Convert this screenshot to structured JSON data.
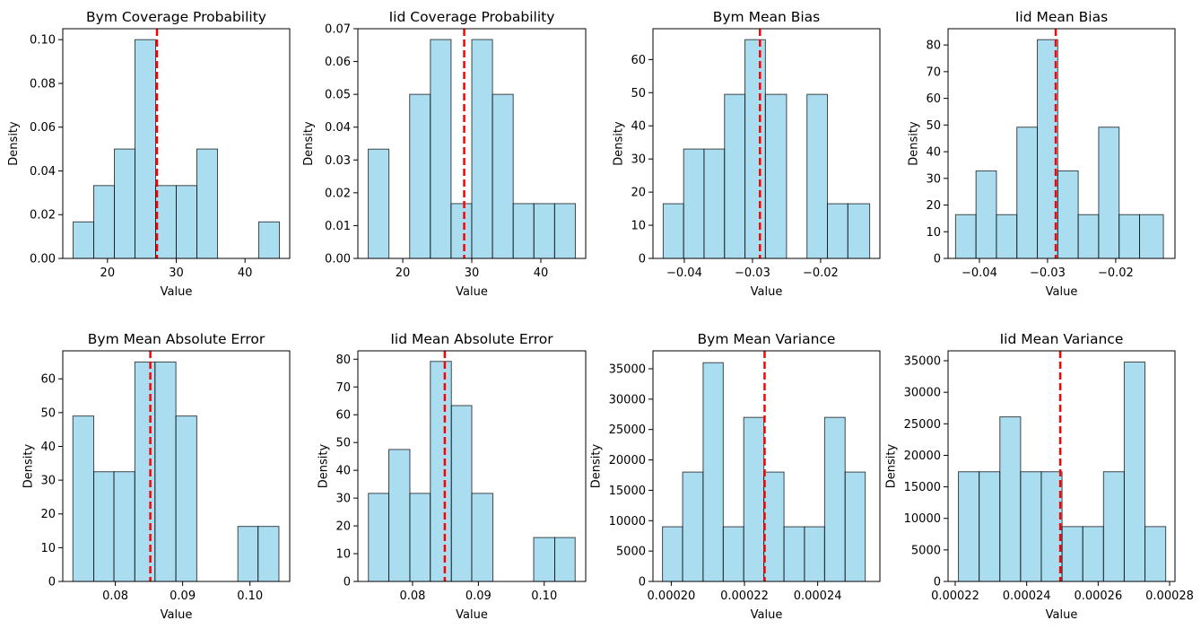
{
  "figure": {
    "colors": {
      "bar_fill": "#87ceeb",
      "bar_edge": "#000000",
      "mean_line": "#ff0000"
    }
  },
  "chart_data": [
    {
      "type": "bar",
      "title": "Bym Coverage Probability",
      "xlabel": "Value",
      "ylabel": "Density",
      "xlim": [
        13.5,
        46.5
      ],
      "ylim": [
        0,
        0.105
      ],
      "xticks": [
        20,
        30,
        40
      ],
      "xtick_labels": [
        "20",
        "30",
        "40"
      ],
      "yticks": [
        0,
        0.02,
        0.04,
        0.06,
        0.08,
        0.1
      ],
      "ytick_labels": [
        "0.00",
        "0.02",
        "0.04",
        "0.06",
        "0.08",
        "0.10"
      ],
      "bin_edges": [
        15,
        18,
        21,
        24,
        27,
        30,
        33,
        36,
        39,
        42,
        45
      ],
      "values": [
        0.0167,
        0.0333,
        0.05,
        0.1,
        0.0333,
        0.0333,
        0.05,
        0,
        0,
        0.0167
      ],
      "mean": 27.2
    },
    {
      "type": "bar",
      "title": "Iid Coverage Probability",
      "xlabel": "Value",
      "ylabel": "Density",
      "xlim": [
        13.5,
        46.5
      ],
      "ylim": [
        0,
        0.07
      ],
      "xticks": [
        20,
        30,
        40
      ],
      "xtick_labels": [
        "20",
        "30",
        "40"
      ],
      "yticks": [
        0,
        0.01,
        0.02,
        0.03,
        0.04,
        0.05,
        0.06,
        0.07
      ],
      "ytick_labels": [
        "0.00",
        "0.01",
        "0.02",
        "0.03",
        "0.04",
        "0.05",
        "0.06",
        "0.07"
      ],
      "bin_edges": [
        15,
        18,
        21,
        24,
        27,
        30,
        33,
        36,
        39,
        42,
        45
      ],
      "values": [
        0.0333,
        0,
        0.05,
        0.0667,
        0.0167,
        0.0667,
        0.05,
        0.0167,
        0.0167,
        0.0167
      ],
      "mean": 28.9
    },
    {
      "type": "bar",
      "title": "Bym Mean Bias",
      "xlabel": "Value",
      "ylabel": "Density",
      "xlim": [
        -0.0446,
        -0.0113
      ],
      "ylim": [
        0,
        69.3
      ],
      "xticks": [
        -0.04,
        -0.03,
        -0.02
      ],
      "xtick_labels": [
        "−0.04",
        "−0.03",
        "−0.02"
      ],
      "yticks": [
        0,
        10,
        20,
        30,
        40,
        50,
        60
      ],
      "ytick_labels": [
        "0",
        "10",
        "20",
        "30",
        "40",
        "50",
        "60"
      ],
      "bin_edges": [
        -0.0431,
        -0.0401,
        -0.0371,
        -0.0341,
        -0.0311,
        -0.0281,
        -0.025,
        -0.022,
        -0.019,
        -0.016,
        -0.0128
      ],
      "values": [
        16.5,
        33,
        33,
        49.5,
        66,
        49.5,
        0,
        49.5,
        16.5,
        16.5
      ],
      "mean": -0.0289
    },
    {
      "type": "bar",
      "title": "Iid Mean Bias",
      "xlabel": "Value",
      "ylabel": "Density",
      "xlim": [
        -0.0446,
        -0.0113
      ],
      "ylim": [
        0,
        86.1
      ],
      "xticks": [
        -0.04,
        -0.03,
        -0.02
      ],
      "xtick_labels": [
        "−0.04",
        "−0.03",
        "−0.02"
      ],
      "yticks": [
        0,
        10,
        20,
        30,
        40,
        50,
        60,
        70,
        80
      ],
      "ytick_labels": [
        "0",
        "10",
        "20",
        "30",
        "40",
        "50",
        "60",
        "70",
        "80"
      ],
      "bin_edges": [
        -0.0435,
        -0.0405,
        -0.0375,
        -0.0345,
        -0.0315,
        -0.0285,
        -0.0255,
        -0.0225,
        -0.0195,
        -0.0165,
        -0.013
      ],
      "values": [
        16.4,
        32.8,
        16.4,
        49.2,
        82,
        32.8,
        16.4,
        49.2,
        16.4,
        16.4
      ],
      "mean": -0.0288
    },
    {
      "type": "bar",
      "title": "Bym Mean Absolute Error",
      "xlabel": "Value",
      "ylabel": "Density",
      "xlim": [
        0.0722,
        0.1059
      ],
      "ylim": [
        0,
        68.3
      ],
      "xticks": [
        0.08,
        0.09,
        0.1
      ],
      "xtick_labels": [
        "0.08",
        "0.09",
        "0.10"
      ],
      "yticks": [
        0,
        10,
        20,
        30,
        40,
        50,
        60
      ],
      "ytick_labels": [
        "0",
        "10",
        "20",
        "30",
        "40",
        "50",
        "60"
      ],
      "bin_edges": [
        0.0737,
        0.0768,
        0.0798,
        0.0829,
        0.0859,
        0.089,
        0.0921,
        0.0951,
        0.0982,
        0.1012,
        0.1043
      ],
      "values": [
        49,
        32.5,
        32.5,
        65,
        65,
        49,
        0,
        0,
        16.3,
        16.3
      ],
      "mean": 0.0852
    },
    {
      "type": "bar",
      "title": "Iid Mean Absolute Error",
      "xlabel": "Value",
      "ylabel": "Density",
      "xlim": [
        0.0717,
        0.1063
      ],
      "ylim": [
        0,
        83
      ],
      "xticks": [
        0.08,
        0.09,
        0.1
      ],
      "xtick_labels": [
        "0.08",
        "0.09",
        "0.10"
      ],
      "yticks": [
        0,
        10,
        20,
        30,
        40,
        50,
        60,
        70,
        80
      ],
      "ytick_labels": [
        "0",
        "10",
        "20",
        "30",
        "40",
        "50",
        "60",
        "70",
        "80"
      ],
      "bin_edges": [
        0.0733,
        0.0764,
        0.0796,
        0.0827,
        0.0859,
        0.089,
        0.0922,
        0.0953,
        0.0984,
        0.1016,
        0.1047
      ],
      "values": [
        31.7,
        47.5,
        31.7,
        79.2,
        63.3,
        31.7,
        0,
        0,
        15.8,
        15.8
      ],
      "mean": 0.0849
    },
    {
      "type": "bar",
      "title": "Bym Mean Variance",
      "xlabel": "Value",
      "ylabel": "Density",
      "xlim": [
        0.000195,
        0.000257
      ],
      "ylim": [
        0,
        37950
      ],
      "xticks": [
        0.0002,
        0.00022,
        0.00024
      ],
      "xtick_labels": [
        "0.00020",
        "0.00022",
        "0.00024"
      ],
      "yticks": [
        0,
        5000,
        10000,
        15000,
        20000,
        25000,
        30000,
        35000
      ],
      "ytick_labels": [
        "0",
        "5000",
        "10000",
        "15000",
        "20000",
        "25000",
        "30000",
        "35000"
      ],
      "bin_edges": [
        0.0001976,
        0.0002031,
        0.0002087,
        0.0002142,
        0.0002198,
        0.0002253,
        0.0002308,
        0.0002364,
        0.0002419,
        0.0002475,
        0.000253
      ],
      "values": [
        9000,
        18000,
        36000,
        9000,
        27000,
        18000,
        9000,
        9000,
        27000,
        18000
      ],
      "mean": 0.0002255
    },
    {
      "type": "bar",
      "title": "Iid Mean Variance",
      "xlabel": "Value",
      "ylabel": "Density",
      "xlim": [
        0.000218,
        0.0002815
      ],
      "ylim": [
        0,
        36570
      ],
      "xticks": [
        0.00022,
        0.00024,
        0.00026,
        0.00028
      ],
      "xtick_labels": [
        "0.00022",
        "0.00024",
        "0.00026",
        "0.00028"
      ],
      "yticks": [
        0,
        5000,
        10000,
        15000,
        20000,
        25000,
        30000,
        35000
      ],
      "ytick_labels": [
        "0",
        "5000",
        "10000",
        "15000",
        "20000",
        "25000",
        "30000",
        "35000"
      ],
      "bin_edges": [
        0.0002209,
        0.0002267,
        0.0002325,
        0.0002383,
        0.0002441,
        0.0002499,
        0.0002557,
        0.0002615,
        0.0002673,
        0.0002731,
        0.0002789
      ],
      "values": [
        17400,
        17400,
        26100,
        17400,
        17400,
        8700,
        8700,
        17400,
        34800,
        8700
      ],
      "mean": 0.0002494
    }
  ]
}
